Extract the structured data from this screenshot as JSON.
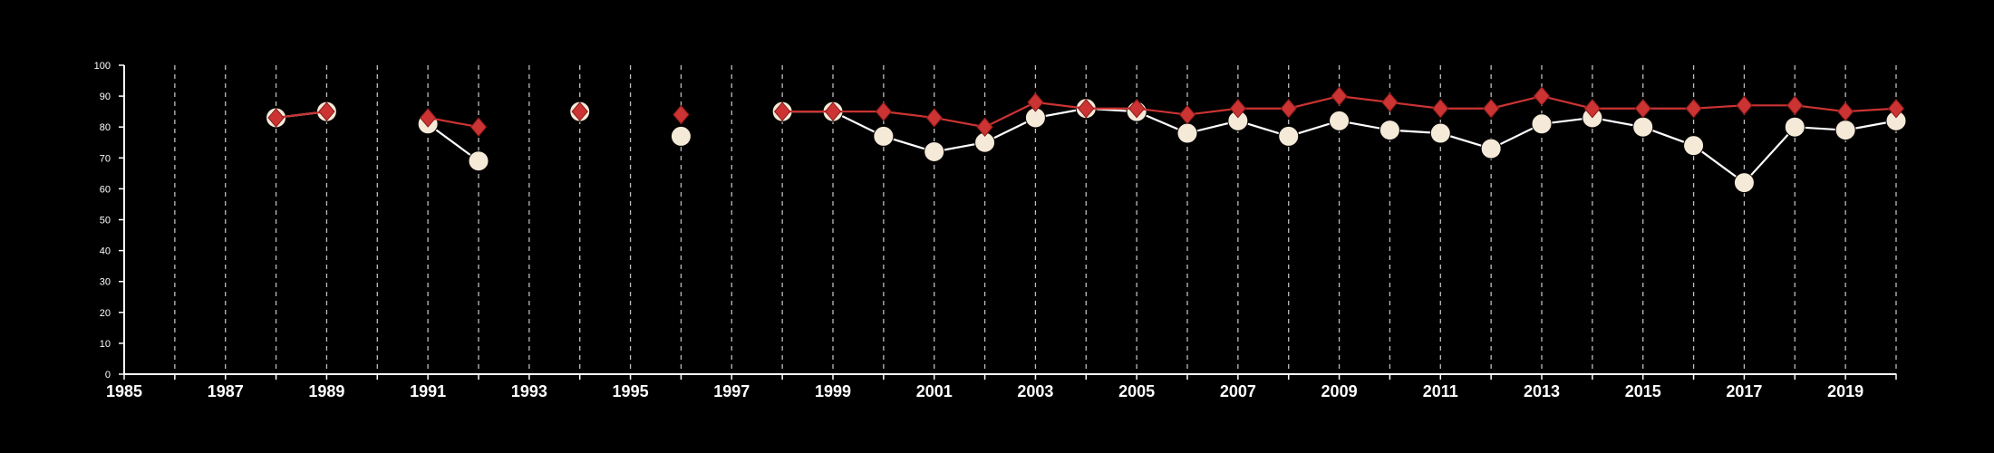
{
  "chart_data": {
    "type": "line",
    "title": "",
    "xlabel": "",
    "ylabel": "",
    "xlim": [
      1985,
      2020
    ],
    "ylim": [
      0,
      100
    ],
    "x_ticks": [
      "1985",
      "1987",
      "1989",
      "1991",
      "1993",
      "1995",
      "1997",
      "1999",
      "2001",
      "2003",
      "2005",
      "2007",
      "2009",
      "2011",
      "2013",
      "2015",
      "2017",
      "2019"
    ],
    "y_ticks": [
      "0",
      "10",
      "20",
      "30",
      "40",
      "50",
      "60",
      "70",
      "80",
      "90",
      "100"
    ],
    "grid": "vertical dashed lines at each year",
    "legend": "none",
    "x": [
      1988,
      1989,
      1991,
      1992,
      1994,
      1996,
      1998,
      1999,
      2000,
      2001,
      2002,
      2003,
      2004,
      2005,
      2006,
      2007,
      2008,
      2009,
      2010,
      2011,
      2012,
      2013,
      2014,
      2015,
      2016,
      2017,
      2018,
      2019,
      2020
    ],
    "series": [
      {
        "marker": "circle",
        "color": "#f5e9d8",
        "values": [
          83,
          85,
          81,
          69,
          85,
          77,
          85,
          85,
          77,
          72,
          75,
          83,
          86,
          85,
          78,
          82,
          77,
          82,
          79,
          78,
          73,
          81,
          83,
          80,
          74,
          62,
          80,
          79,
          82
        ]
      },
      {
        "marker": "diamond",
        "color": "#cc3333",
        "values": [
          83,
          85,
          83,
          80,
          85,
          84,
          85,
          85,
          85,
          83,
          80,
          88,
          86,
          86,
          84,
          86,
          86,
          90,
          88,
          86,
          86,
          90,
          86,
          86,
          86,
          87,
          87,
          85,
          86
        ]
      }
    ]
  }
}
